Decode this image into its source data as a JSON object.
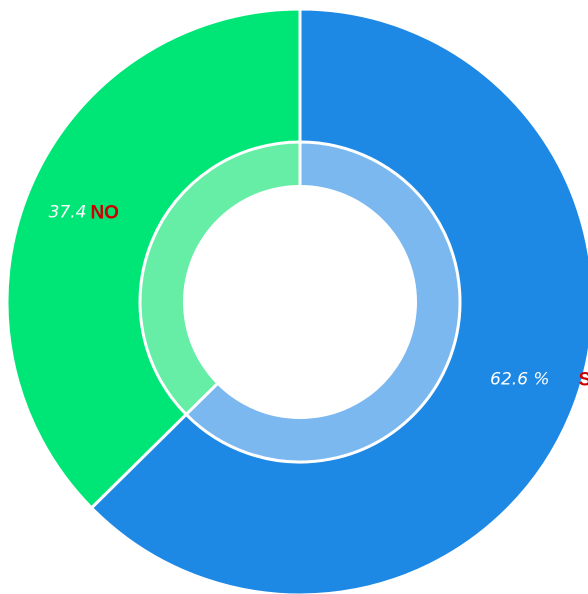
{
  "chart_data": {
    "type": "pie",
    "donut": true,
    "categories": [
      "SI",
      "NO"
    ],
    "values": [
      62.6,
      37.4
    ],
    "value_labels": [
      "62.6 %",
      "37.4"
    ],
    "title": "",
    "colors": {
      "SI": "#1e88e5",
      "NO": "#00e676",
      "SI_inner": "#7cb8f0",
      "NO_inner": "#66eea6",
      "label": "#cc0000",
      "divider": "#ffffff"
    }
  }
}
